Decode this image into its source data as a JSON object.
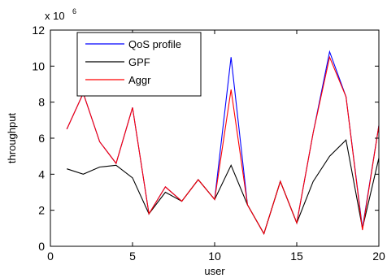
{
  "chart_data": {
    "type": "line",
    "xlabel": "user",
    "ylabel": "throughput",
    "y_multiplier": "x 10",
    "y_exponent": "6",
    "xlim": [
      0,
      20
    ],
    "ylim": [
      0,
      12
    ],
    "x_ticks": [
      "0",
      "5",
      "10",
      "15",
      "20"
    ],
    "y_ticks": [
      "0",
      "2",
      "4",
      "6",
      "8",
      "10",
      "12"
    ],
    "grid": false,
    "legend_position": "top-left",
    "x": [
      1,
      2,
      3,
      4,
      5,
      6,
      7,
      8,
      9,
      10,
      11,
      12,
      13,
      14,
      15,
      16,
      17,
      18,
      19,
      20
    ],
    "series": [
      {
        "name": "QoS profile",
        "color": "#0000ff",
        "values": [
          6.5,
          8.5,
          5.8,
          4.6,
          7.7,
          1.8,
          3.3,
          2.5,
          3.7,
          2.6,
          10.5,
          2.3,
          0.7,
          3.6,
          1.3,
          6.3,
          10.8,
          8.3,
          1.0,
          6.7
        ]
      },
      {
        "name": "GPF",
        "color": "#000000",
        "values": [
          4.3,
          4.0,
          4.4,
          4.5,
          3.8,
          1.8,
          3.0,
          2.5,
          3.7,
          2.6,
          4.5,
          2.3,
          0.7,
          3.6,
          1.3,
          3.6,
          5.0,
          5.9,
          1.0,
          4.9
        ]
      },
      {
        "name": "Aggr",
        "color": "#ff0000",
        "values": [
          6.5,
          8.5,
          5.8,
          4.6,
          7.7,
          1.8,
          3.3,
          2.5,
          3.7,
          2.6,
          8.7,
          2.3,
          0.7,
          3.6,
          1.3,
          6.3,
          10.5,
          8.3,
          0.9,
          6.7
        ]
      }
    ]
  }
}
